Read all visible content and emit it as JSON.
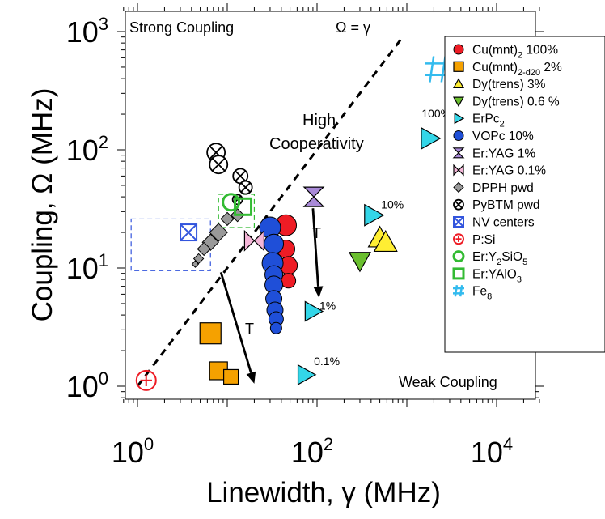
{
  "chart_data": {
    "type": "scatter",
    "xlabel": "Linewidth, γ (MHz)",
    "ylabel": "Coupling, Ω (MHz)",
    "xscale": "log",
    "yscale": "log",
    "xlim": [
      0.7,
      30000
    ],
    "ylim": [
      0.75,
      1000
    ],
    "x_ticks": [
      {
        "v": 1,
        "base": "10",
        "exp": "0"
      },
      {
        "v": 100,
        "base": "10",
        "exp": "2"
      },
      {
        "v": 10000,
        "base": "10",
        "exp": "4"
      }
    ],
    "y_ticks": [
      {
        "v": 1,
        "base": "10",
        "exp": "0"
      },
      {
        "v": 10,
        "base": "10",
        "exp": "1"
      },
      {
        "v": 100,
        "base": "10",
        "exp": "2"
      },
      {
        "v": 1000,
        "base": "10",
        "exp": "3"
      }
    ],
    "grid": false,
    "legend_position": "right",
    "annotations": {
      "strong": "Strong Coupling",
      "weak": "Weak Coupling",
      "omega_eq": "Ω = γ",
      "high_coop_1": "High",
      "high_coop_2": "Cooperativity",
      "arrow_label_1": "T",
      "arrow_label_2": "T"
    },
    "series": [
      {
        "name": "Cu(mnt)",
        "sub": "2",
        "rest": " 100%",
        "marker": "circle",
        "color": "#ee1c25",
        "points": [
          [
            45,
            23
          ],
          [
            45,
            14.5
          ],
          [
            48,
            10.5
          ],
          [
            48,
            7.8
          ]
        ],
        "sizes": [
          13,
          11,
          11,
          9
        ]
      },
      {
        "name": "Cu(mnt)",
        "sub": "2-d20",
        "rest": " 2%",
        "marker": "square",
        "color": "#f5a100",
        "points": [
          [
            6.5,
            2.8
          ],
          [
            8,
            1.35
          ],
          [
            11,
            1.2
          ]
        ],
        "sizes": [
          13,
          11,
          9
        ]
      },
      {
        "name": "Dy(trens) 3%",
        "sub": "",
        "rest": "",
        "marker": "triangle-up",
        "color": "#ffee33",
        "points": [
          [
            500,
            18
          ],
          [
            580,
            16.5
          ]
        ],
        "sizes": [
          14,
          14
        ]
      },
      {
        "name": "Dy(trens) 0.6 %",
        "sub": "",
        "rest": "",
        "marker": "triangle-down",
        "color": "#6abf2e",
        "points": [
          [
            300,
            11.5
          ]
        ],
        "sizes": [
          13
        ]
      },
      {
        "name": "ErPc",
        "sub": "2",
        "rest": "",
        "marker": "triangle-right",
        "color": "#33d6e8",
        "points": [
          [
            1800,
            125
          ],
          [
            420,
            28
          ],
          [
            90,
            4.3
          ],
          [
            75,
            1.25
          ]
        ],
        "sizes": [
          13,
          13,
          12,
          12
        ],
        "labels": [
          "100%",
          "10%",
          "1%",
          "0.1%"
        ]
      },
      {
        "name": "VOPc 10%",
        "sub": "",
        "rest": "",
        "marker": "circle",
        "color": "#1f4fd8",
        "points": [
          [
            30,
            22
          ],
          [
            33,
            16
          ],
          [
            32,
            11
          ],
          [
            33,
            8.8
          ],
          [
            33,
            7.2
          ],
          [
            33,
            5.5
          ],
          [
            34,
            4.4
          ],
          [
            35,
            3.7
          ],
          [
            35,
            3.1
          ]
        ],
        "sizes": [
          13,
          12,
          13,
          11,
          11,
          10,
          10,
          9,
          7
        ]
      },
      {
        "name": "Er:YAG 1%",
        "sub": "",
        "rest": "",
        "marker": "hourglass",
        "color": "#a98ad8",
        "points": [
          [
            92,
            40
          ]
        ],
        "sizes": [
          12
        ]
      },
      {
        "name": "Er:YAG 0.1%",
        "sub": "",
        "rest": "",
        "marker": "bowtie",
        "color": "#f4b6d8",
        "points": [
          [
            20,
            17
          ]
        ],
        "sizes": [
          12
        ]
      },
      {
        "name": "DPPH pwd",
        "sub": "",
        "rest": "",
        "marker": "diamond",
        "color": "#999999",
        "points": [
          [
            13,
            28
          ],
          [
            10,
            26
          ],
          [
            8,
            20
          ],
          [
            6.5,
            16.5
          ],
          [
            5.5,
            14.5
          ],
          [
            4.8,
            12
          ],
          [
            4.4,
            10.8
          ]
        ],
        "sizes": [
          8,
          8,
          11,
          10,
          8,
          6,
          4
        ]
      },
      {
        "name": "PyBTM pwd",
        "sub": "",
        "rest": "",
        "marker": "circle-x",
        "color": "#ffffff",
        "points": [
          [
            7.5,
            95
          ],
          [
            8,
            75
          ],
          [
            14,
            60
          ],
          [
            16,
            48
          ],
          [
            13,
            38
          ]
        ],
        "sizes": [
          11,
          11,
          9,
          8,
          6
        ]
      },
      {
        "name": "NV centers",
        "sub": "",
        "rest": "",
        "marker": "square-x",
        "color": "#3355dd",
        "points": [
          [
            3.7,
            20
          ]
        ],
        "sizes": [
          10
        ]
      },
      {
        "name": "P:Si",
        "sub": "",
        "rest": "",
        "marker": "circle-plus",
        "color": "#ee1c25",
        "points": [
          [
            1.25,
            1.12
          ]
        ],
        "sizes": [
          12
        ]
      },
      {
        "name": "Er:Y",
        "sub": "2",
        "rest": "SiO",
        "sub2": "5",
        "marker": "circle-open",
        "color": "#33bb33",
        "points": [
          [
            11,
            36
          ]
        ],
        "sizes": [
          10
        ]
      },
      {
        "name": "Er:YAlO",
        "sub": "3",
        "rest": "",
        "marker": "square-open",
        "color": "#33bb33",
        "points": [
          [
            15,
            33
          ]
        ],
        "sizes": [
          10
        ]
      },
      {
        "name": "Fe",
        "sub": "8",
        "rest": "",
        "marker": "hash",
        "color": "#33bbee",
        "points": [
          [
            2200,
            480
          ]
        ],
        "sizes": [
          16
        ]
      }
    ],
    "regions": [
      {
        "name": "NV centers range",
        "x": [
          0.85,
          6.5
        ],
        "y": [
          9.5,
          26
        ],
        "color": "#3355dd"
      },
      {
        "name": "Er:YAlO3 range",
        "x": [
          8,
          20
        ],
        "y": [
          22,
          42
        ],
        "color": "#33bb33"
      }
    ],
    "reference_line": {
      "label": "Ω = γ",
      "x": [
        1,
        900
      ],
      "y": [
        1,
        900
      ]
    },
    "arrows": [
      {
        "from": [
          90,
          32
        ],
        "to": [
          105,
          5.6
        ],
        "label": "T"
      },
      {
        "from": [
          8.5,
          9.2
        ],
        "to": [
          20,
          1.05
        ],
        "label": "T"
      }
    ]
  }
}
